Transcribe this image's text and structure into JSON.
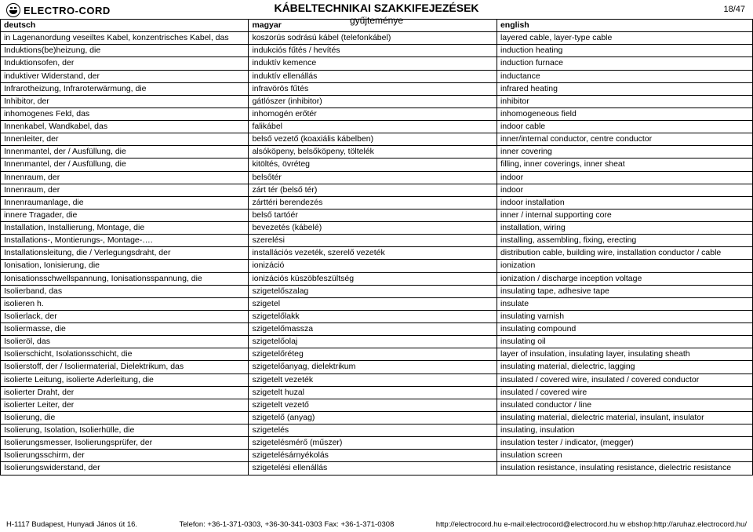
{
  "header": {
    "brand": "ELECTRO-CORD",
    "title": "KÁBELTECHNIKAI SZAKKIFEJEZÉSEK",
    "subtitle": "gyűjteménye",
    "page": "18/47"
  },
  "columns": [
    "deutsch",
    "magyar",
    "english"
  ],
  "rows": [
    [
      "in Lagenanordung veseiltes Kabel, konzentrisches Kabel, das",
      "koszorús sodrású kábel (telefonkábel)",
      "layered cable, layer-type cable"
    ],
    [
      "Induktions(be)heizung, die",
      "indukciós fűtés / hevítés",
      "induction heating"
    ],
    [
      "Induktionsofen, der",
      "induktív kemence",
      "induction furnace"
    ],
    [
      "induktiver Widerstand, der",
      "induktív ellenállás",
      "inductance"
    ],
    [
      "Infrarotheizung, Infraroterwärmung, die",
      "infravörös fűtés",
      "infrared heating"
    ],
    [
      "Inhibitor, der",
      "gátlószer (inhibitor)",
      "inhibitor"
    ],
    [
      "inhomogenes Feld, das",
      "inhomogén erőtér",
      "inhomogeneous field"
    ],
    [
      "Innenkabel, Wandkabel, das",
      "falikábel",
      "indoor cable"
    ],
    [
      "Innenleiter, der",
      "belső vezető (koaxiális kábelben)",
      "inner/internal conductor, centre conductor"
    ],
    [
      "Innenmantel, der / Ausfüllung, die",
      "alsóköpeny, belsőköpeny, töltelék",
      "inner covering"
    ],
    [
      "Innenmantel, der / Ausfüllung, die",
      "kitöltés, övréteg",
      "filling, inner coverings, inner sheat"
    ],
    [
      "Innenraum, der",
      "belsőtér",
      "indoor"
    ],
    [
      "Innenraum, der",
      "zárt tér (belső tér)",
      "indoor"
    ],
    [
      "Innenraumanlage, die",
      "zárttéri berendezés",
      "indoor installation"
    ],
    [
      "innere Tragader, die",
      "belső tartóér",
      "inner / internal supporting core"
    ],
    [
      "Installation, Installierung, Montage, die",
      "bevezetés (kábelé)",
      "installation, wiring"
    ],
    [
      "Installations-, Montierungs-, Montage-….",
      "szerelési",
      "installing, assembling, fixing, erecting"
    ],
    [
      "Installationsleitung, die / Verlegungsdraht, der",
      "installációs vezeték, szerelő vezeték",
      "distribution cable, building wire, installation conductor / cable"
    ],
    [
      "Ionisation, Ionisierung, die",
      "ionizáció",
      "ionization"
    ],
    [
      "Ionisationsschwellspannung, Ionisationsspannung, die",
      "ionizációs küszöbfeszültség",
      "ionization / discharge inception voltage"
    ],
    [
      "Isolierband, das",
      "szigetelőszalag",
      "insulating tape, adhesive tape"
    ],
    [
      "isolieren h.",
      "szigetel",
      "insulate"
    ],
    [
      "Isolierlack, der",
      "szigetelőlakk",
      "insulating varnish"
    ],
    [
      "Isoliermasse, die",
      "szigetelőmassza",
      "insulating compound"
    ],
    [
      "Isolieröl, das",
      "szigetelőolaj",
      "insulating oil"
    ],
    [
      "Isolierschicht, Isolationsschicht, die",
      "szigetelőréteg",
      "layer of insulation, insulating layer, insulating sheath"
    ],
    [
      "Isolierstoff, der / Isoliermaterial, Dielektrikum, das",
      "szigetelőanyag, dielektrikum",
      "insulating material, dielectric, lagging"
    ],
    [
      "isolierte Leitung, isolierte Aderleitung, die",
      "szigetelt vezeték",
      "insulated / covered wire, insulated / covered conductor"
    ],
    [
      "isolierter Draht, der",
      "szigetelt huzal",
      "insulated / covered wire"
    ],
    [
      "isolierter Leiter, der",
      "szigetelt vezető",
      "insulated conductor / line"
    ],
    [
      "Isolierung, die",
      "szigetelő (anyag)",
      "insulating material, dielectric material, insulant, insulator"
    ],
    [
      "Isolierung, Isolation, Isolierhülle, die",
      "szigetelés",
      "insulating, insulation"
    ],
    [
      "Isolierungsmesser, Isolierungsprüfer, der",
      "szigetelésmérő (műszer)",
      "insulation tester / indicator, (megger)"
    ],
    [
      "Isolierungsschirm, der",
      "szigetelésárnyékolás",
      "insulation screen"
    ],
    [
      "Isolierungswiderstand, der",
      "szigetelési ellenállás",
      "insulation resistance, insulating resistance, dielectric resistance"
    ]
  ],
  "footer": {
    "address": "H-1117 Budapest, Hunyadi János út 16.",
    "phone": "Telefon: +36-1-371-0303, +36-30-341-0303 Fax: +36-1-371-0308",
    "web": "http://electrocord.hu  e-mail:electrocord@electrocord.hu  w ebshop:http://aruhaz.electrocord.hu/"
  }
}
